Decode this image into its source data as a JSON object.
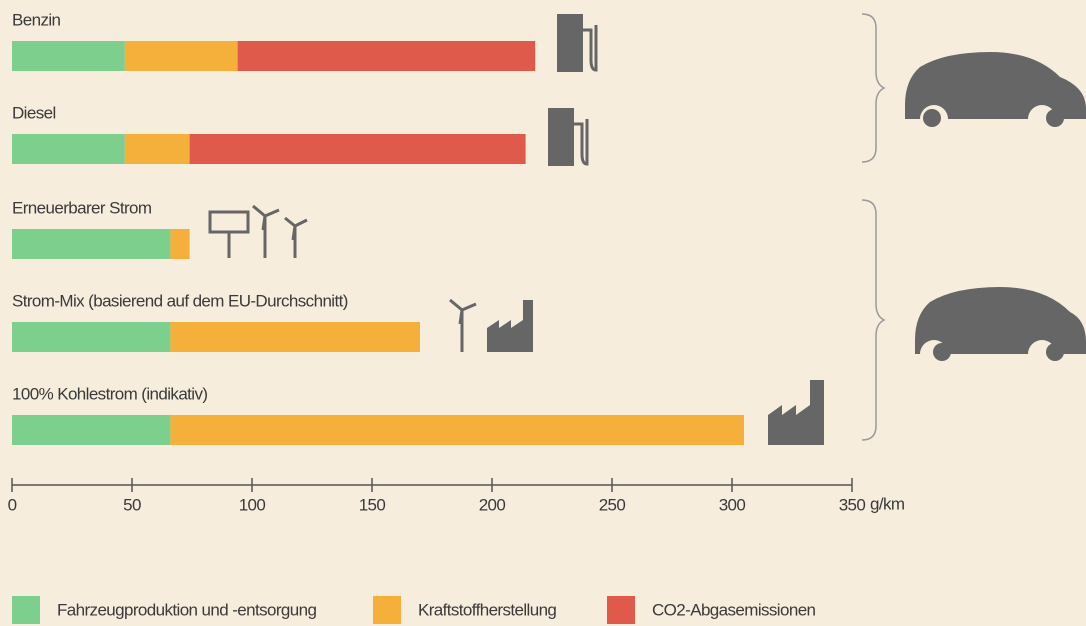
{
  "chart_data": {
    "type": "bar",
    "orientation": "horizontal",
    "stacked": true,
    "categories": [
      "Benzin",
      "Diesel",
      "Erneuerbarer Strom",
      "Strom-Mix (basierend auf dem EU-Durchschnitt)",
      "100% Kohlestrom (indikativ)"
    ],
    "series": [
      {
        "name": "Fahrzeugproduktion und -entsorgung",
        "color": "#7dcf8e",
        "values": [
          47,
          47,
          66,
          66,
          66
        ]
      },
      {
        "name": "Kraftstoffherstellung",
        "color": "#f4b03a",
        "values": [
          47,
          27,
          8,
          104,
          239
        ]
      },
      {
        "name": "CO2-Abgasemissionen",
        "color": "#e05a4b",
        "values": [
          124,
          140,
          0,
          0,
          0
        ]
      }
    ],
    "xlim": [
      0,
      350
    ],
    "xticks": [
      0,
      50,
      100,
      150,
      200,
      250,
      300,
      350
    ],
    "xlabel": "g/km"
  }
}
